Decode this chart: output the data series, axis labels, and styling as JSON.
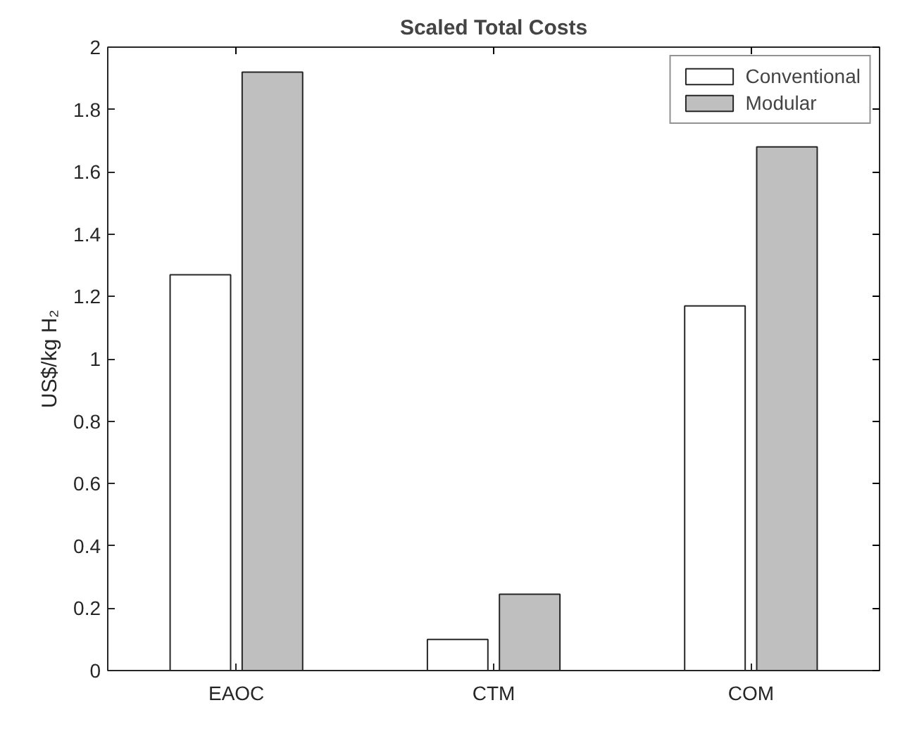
{
  "chart_data": {
    "type": "bar",
    "title": "Scaled Total Costs",
    "ylabel": "US$/kg H₂",
    "categories": [
      "EAOC",
      "CTM",
      "COM"
    ],
    "series": [
      {
        "name": "Conventional",
        "color": "#ffffff",
        "values": [
          1.27,
          0.1,
          1.17
        ]
      },
      {
        "name": "Modular",
        "color": "#bfbfbf",
        "values": [
          1.92,
          0.245,
          1.68
        ]
      }
    ],
    "ylim": [
      0,
      2
    ],
    "yticks": [
      0,
      0.2,
      0.4,
      0.6,
      0.8,
      1,
      1.2,
      1.4,
      1.6,
      1.8,
      2
    ],
    "grid": false,
    "legend": "top right"
  }
}
